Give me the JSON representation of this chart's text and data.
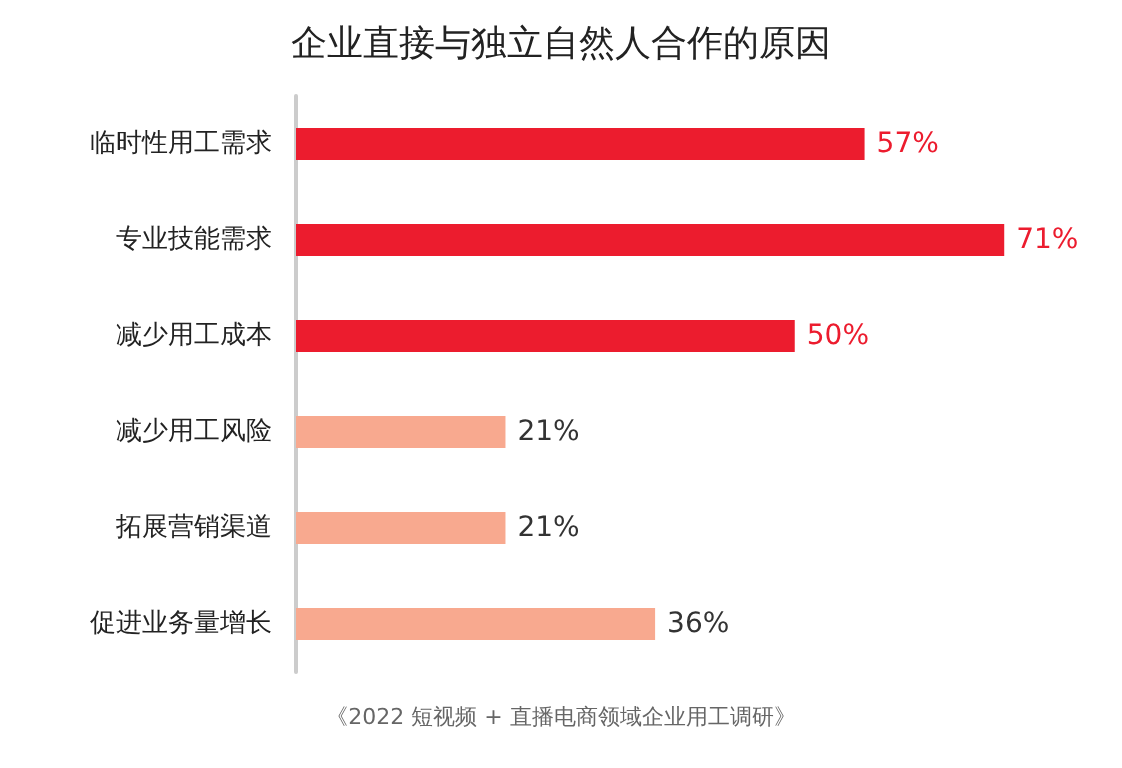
{
  "chart_data": {
    "type": "bar",
    "orientation": "horizontal",
    "title": "企业直接与独立自然人合作的原因",
    "categories": [
      "临时性用工需求",
      "专业技能需求",
      "减少用工成本",
      "减少用工风险",
      "拓展营销渠道",
      "促进业务量增长"
    ],
    "values": [
      57,
      71,
      50,
      21,
      21,
      36
    ],
    "colors": [
      "#ec1c2e",
      "#ec1c2e",
      "#ec1c2e",
      "#f8a98f",
      "#f8a98f",
      "#f8a98f"
    ],
    "value_labels": [
      "57%",
      "71%",
      "50%",
      "21%",
      "21%",
      "36%"
    ],
    "tick_labels": "y",
    "annotations": [
      "《2022 短视频 + 直播电商领域企业用工调研》"
    ]
  }
}
